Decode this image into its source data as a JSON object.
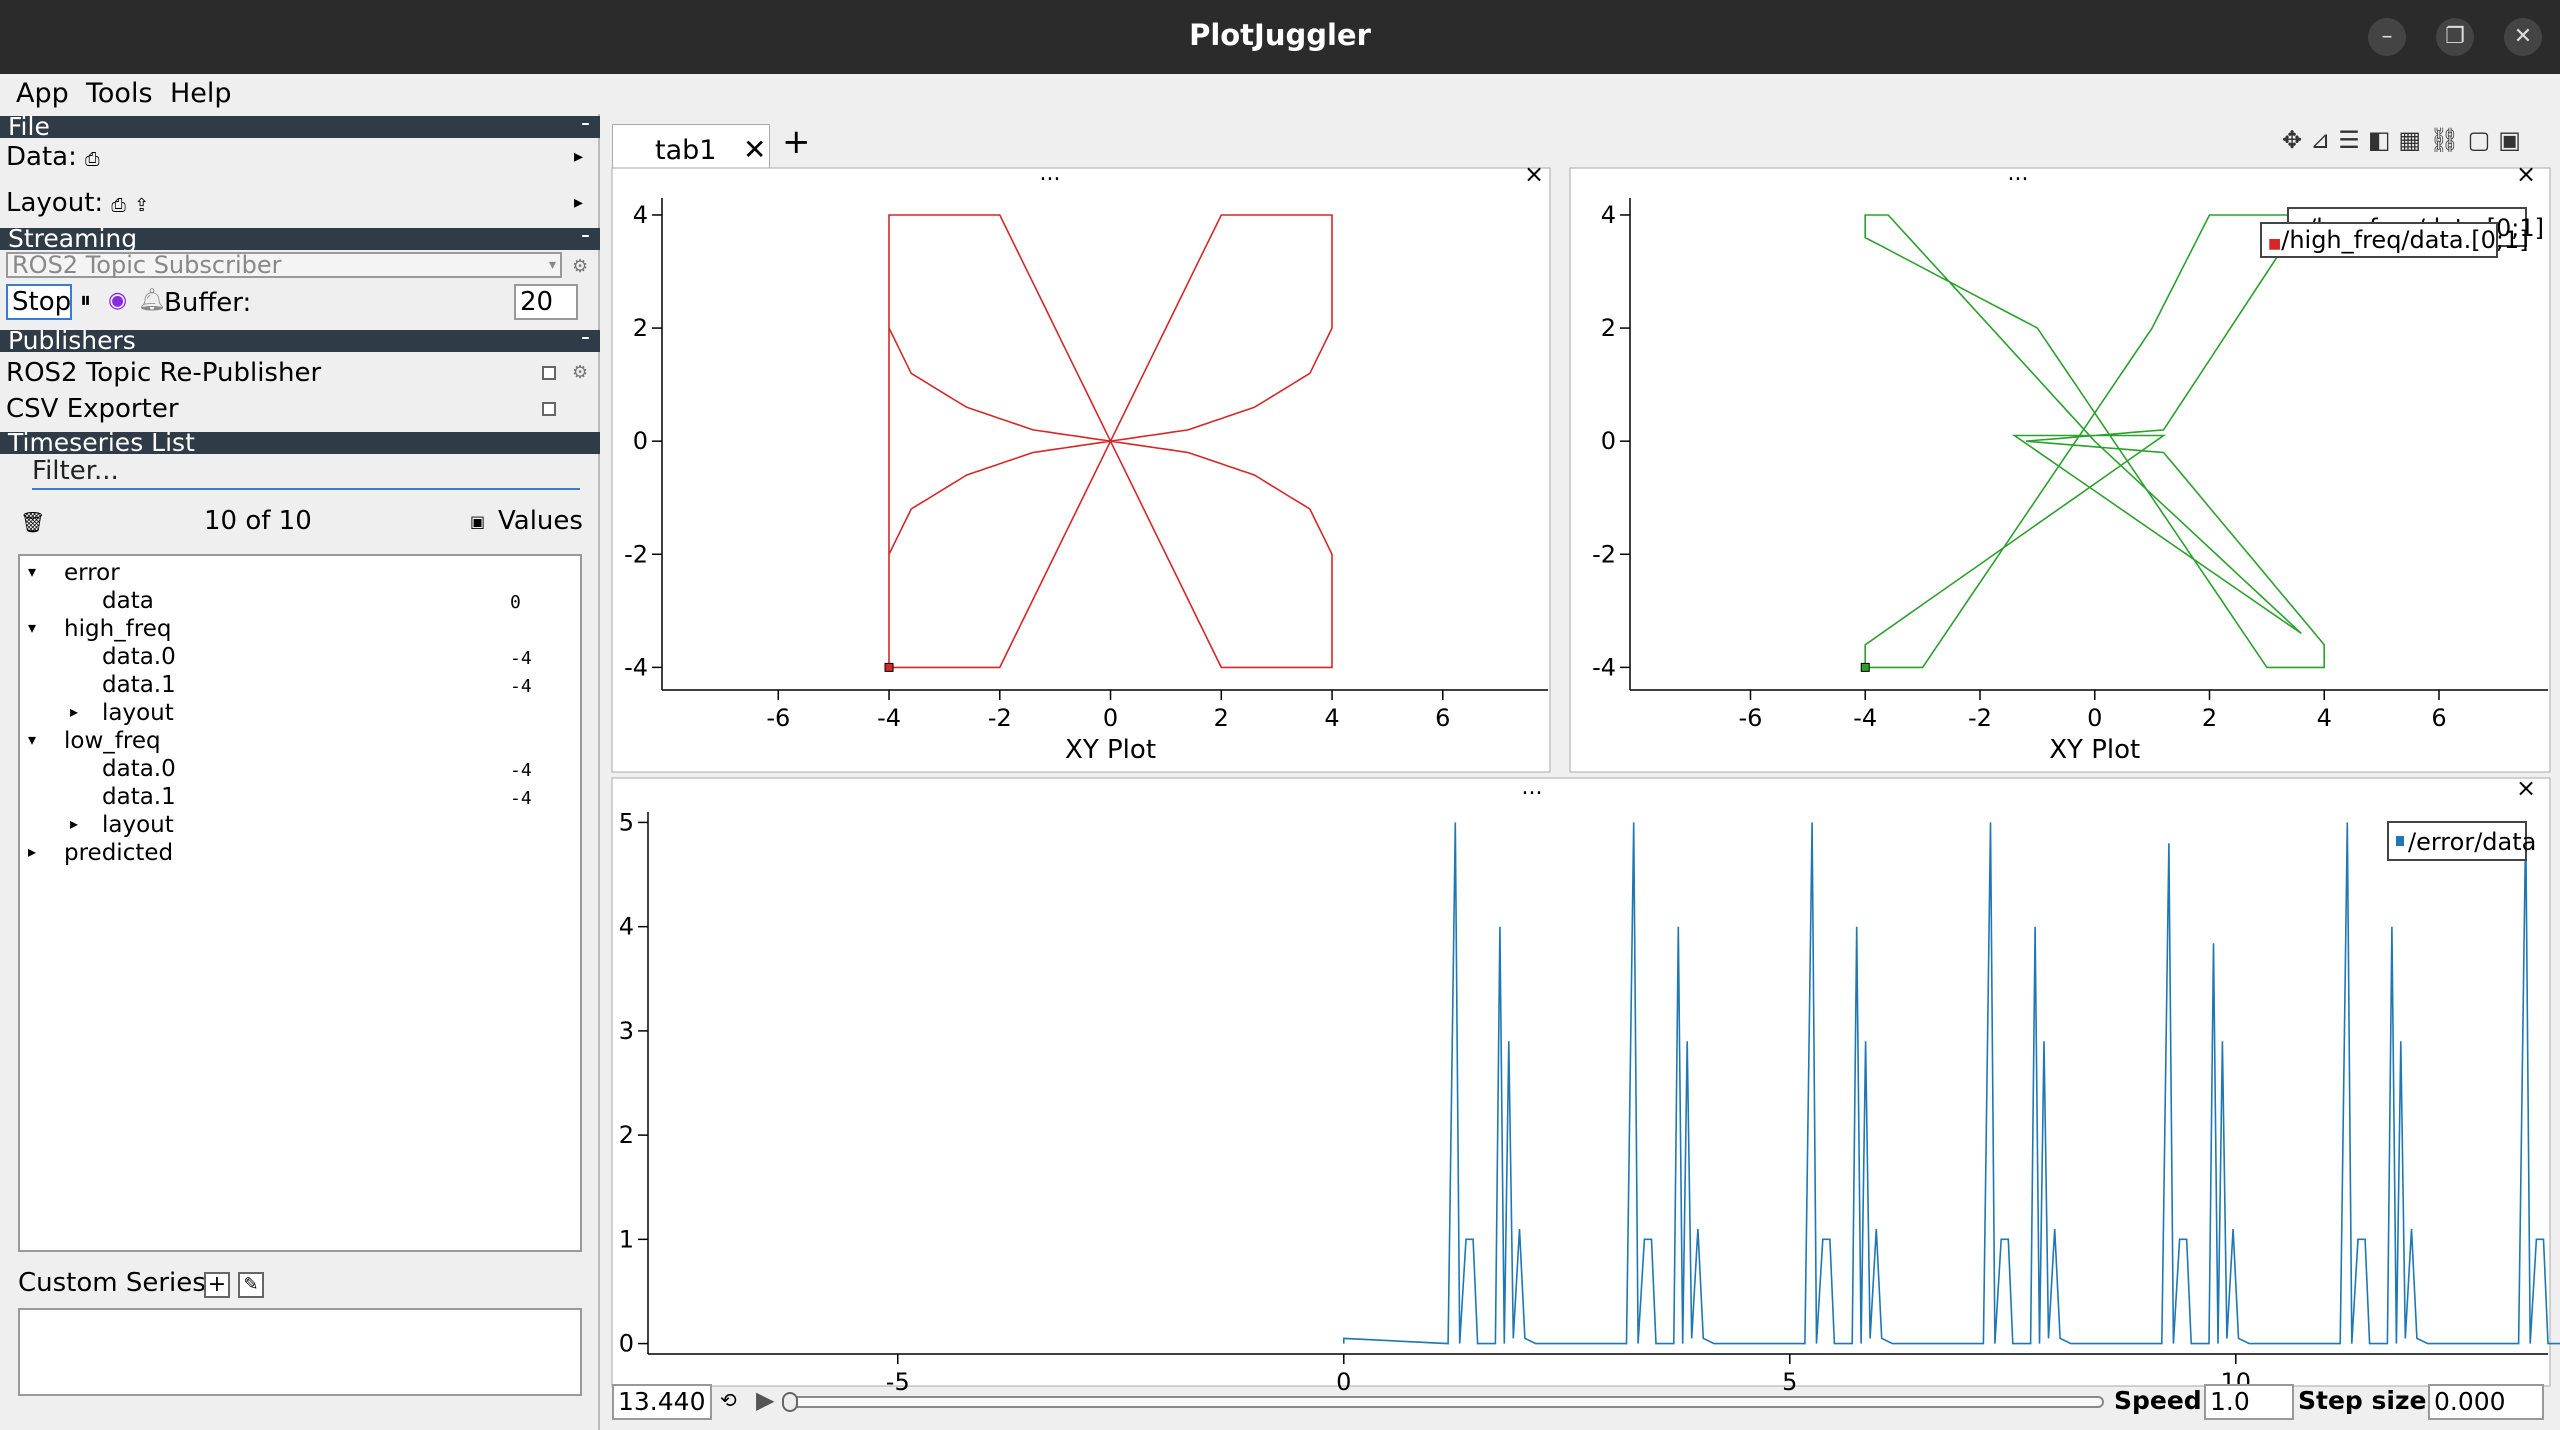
{
  "window": {
    "title": "PlotJuggler"
  },
  "menu": [
    "App",
    "Tools",
    "Help"
  ],
  "sidebar": {
    "file_header": "File",
    "data_label": "Data:",
    "layout_label": "Layout:",
    "streaming_header": "Streaming",
    "streaming_source": "ROS2 Topic Subscriber",
    "stop_label": "Stop",
    "buffer_label": "Buffer:",
    "buffer_value": "20",
    "publishers_header": "Publishers",
    "publishers": [
      "ROS2 Topic Re-Publisher",
      "CSV Exporter"
    ],
    "timeseries_header": "Timeseries List",
    "filter_placeholder": "Filter...",
    "count": "10 of 10",
    "values_label": "Values",
    "custom_series_label": "Custom Series:",
    "tree": [
      {
        "label": "error",
        "level": 0,
        "arrow": "down"
      },
      {
        "label": "data",
        "level": 1,
        "value": "0"
      },
      {
        "label": "high_freq",
        "level": 0,
        "arrow": "down"
      },
      {
        "label": "data.0",
        "level": 1,
        "value": "-4"
      },
      {
        "label": "data.1",
        "level": 1,
        "value": "-4"
      },
      {
        "label": "layout",
        "level": 1,
        "arrow": "right"
      },
      {
        "label": "low_freq",
        "level": 0,
        "arrow": "down"
      },
      {
        "label": "data.0",
        "level": 1,
        "value": "-4"
      },
      {
        "label": "data.1",
        "level": 1,
        "value": "-4"
      },
      {
        "label": "layout",
        "level": 1,
        "arrow": "right"
      },
      {
        "label": "predicted",
        "level": 0,
        "arrow": "right"
      }
    ]
  },
  "tabs": {
    "active": "tab1",
    "add_symbol": "+"
  },
  "plots": {
    "dots": "...",
    "close_symbol": "×",
    "xy_title": "XY Plot",
    "high_freq_legend": "/high_freq/data.[0;1]",
    "low_freq_legend": "/low_freq/data.[0;1]",
    "error_legend": "/error/data",
    "high_color": "#d62728",
    "low_color": "#2ca02c",
    "error_color": "#1f77b4"
  },
  "chart_data": [
    {
      "type": "line",
      "legend": "/high_freq/data.[0;1]",
      "xlabel": "XY Plot",
      "xticks": [
        -6,
        -4,
        -2,
        0,
        2,
        4,
        6
      ],
      "yticks": [
        -4,
        -2,
        0,
        2,
        4
      ],
      "xlim": [
        -8.1,
        7.9
      ],
      "ylim": [
        -4.4,
        4.3
      ]
    },
    {
      "type": "line",
      "legend": "/low_freq/data.[0;1]",
      "xlabel": "XY Plot",
      "xticks": [
        -6,
        -4,
        -2,
        0,
        2,
        4,
        6
      ],
      "yticks": [
        -4,
        -2,
        0,
        2,
        4
      ],
      "xlim": [
        -8.1,
        7.9
      ],
      "ylim": [
        -4.4,
        4.3
      ]
    },
    {
      "type": "line",
      "legend": "/error/data",
      "xticks": [
        -5,
        0,
        5,
        10
      ],
      "yticks": [
        0,
        1,
        2,
        3,
        4,
        5
      ],
      "xlim": [
        -7.8,
        13.5
      ],
      "ylim": [
        -0.1,
        5.1
      ],
      "peaks_x": [
        1.25,
        3.25,
        5.25,
        7.25,
        9.25,
        11.25,
        13.25
      ],
      "peak_heights": [
        5.0,
        5.0,
        5.0,
        5.0,
        4.8,
        5.0,
        5.0
      ]
    }
  ],
  "bottom": {
    "time": "13.440",
    "speed_label": "Speed:",
    "speed_value": "1.0",
    "step_label": "Step size:",
    "step_value": "0.000"
  }
}
